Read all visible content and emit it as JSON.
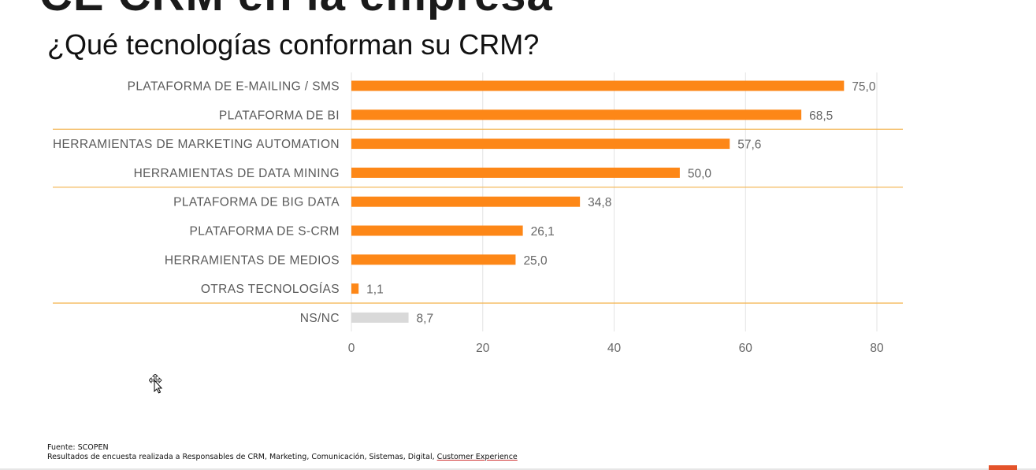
{
  "slide": {
    "top_title": "CE CRM en la empresa",
    "question": "¿Qué tecnologías conforman su CRM?"
  },
  "chart_data": {
    "type": "bar",
    "orientation": "horizontal",
    "categories": [
      "PLATAFORMA DE E-MAILING / SMS",
      "PLATAFORMA DE BI",
      "HERRAMIENTAS DE MARKETING AUTOMATION",
      "HERRAMIENTAS DE DATA MINING",
      "PLATAFORMA DE BIG DATA",
      "PLATAFORMA DE S-CRM",
      "HERRAMIENTAS DE MEDIOS",
      "OTRAS TECNOLOGÍAS",
      "NS/NC"
    ],
    "values": [
      75.0,
      68.5,
      57.6,
      50.0,
      34.8,
      26.1,
      25.0,
      1.1,
      8.7
    ],
    "value_labels": [
      "75,0",
      "68,5",
      "57,6",
      "50,0",
      "34,8",
      "26,1",
      "25,0",
      "1,1",
      "8,7"
    ],
    "bar_colors": [
      "#fd8717",
      "#fd8717",
      "#fd8717",
      "#fd8717",
      "#fd8717",
      "#fd8717",
      "#fd8717",
      "#fd8717",
      "#d9d9d9"
    ],
    "xlim": [
      0,
      80
    ],
    "xticks": [
      0,
      20,
      40,
      60,
      80
    ],
    "grid": true,
    "group_separators_after": [
      1,
      3,
      7
    ],
    "separator_color": "#f3b24a",
    "title": "",
    "xlabel": "",
    "ylabel": ""
  },
  "footer": {
    "source": "Fuente: SCOPEN",
    "note_prefix": "Resultados de encuesta realizada a Responsables de CRM, Marketing, Comunicación, Sistemas, Digital, ",
    "note_underlined": "Customer Experience"
  },
  "icons": {
    "cursor": "move-cursor-icon"
  }
}
